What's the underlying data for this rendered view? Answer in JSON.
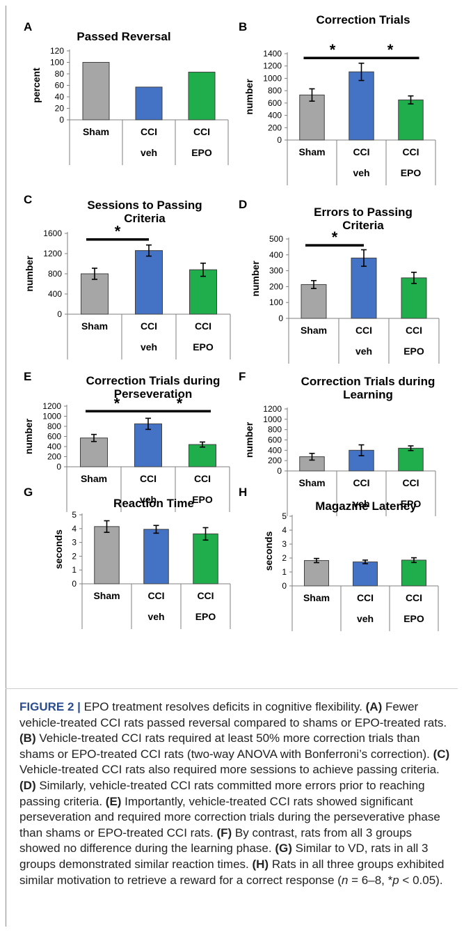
{
  "figure": {
    "label": "FIGURE 2 |",
    "caption_segments": [
      {
        "text": "EPO treatment resolves deficits in cognitive flexibility. ",
        "style": "normal"
      },
      {
        "text": "(A)",
        "style": "bold"
      },
      {
        "text": " Fewer vehicle-treated CCI rats passed reversal compared to shams or EPO-treated rats. ",
        "style": "normal"
      },
      {
        "text": "(B)",
        "style": "bold"
      },
      {
        "text": " Vehicle-treated CCI rats required at least 50% more correction trials than shams or EPO-treated CCI rats (two-way ANOVA with Bonferroni’s correction). ",
        "style": "normal"
      },
      {
        "text": "(C)",
        "style": "bold"
      },
      {
        "text": " Vehicle-treated CCI rats also required more sessions to achieve passing criteria. ",
        "style": "normal"
      },
      {
        "text": "(D)",
        "style": "bold"
      },
      {
        "text": " Similarly, vehicle-treated CCI rats committed more errors prior to reaching passing criteria. ",
        "style": "normal"
      },
      {
        "text": "(E)",
        "style": "bold"
      },
      {
        "text": " Importantly, vehicle-treated CCI rats showed significant perseveration and required more correction trials during the perseverative phase than shams or EPO-treated CCI rats. ",
        "style": "normal"
      },
      {
        "text": "(F)",
        "style": "bold"
      },
      {
        "text": " By contrast, rats from all 3 groups showed no difference during the learning phase. ",
        "style": "normal"
      },
      {
        "text": "(G)",
        "style": "bold"
      },
      {
        "text": " Similar to VD, rats in all 3 groups demonstrated similar reaction times. ",
        "style": "normal"
      },
      {
        "text": "(H)",
        "style": "bold"
      },
      {
        "text": " Rats in all three groups exhibited similar motivation to retrieve a reward for a correct response (",
        "style": "normal"
      },
      {
        "text": "n",
        "style": "italic"
      },
      {
        "text": " = 6–8, *",
        "style": "normal"
      },
      {
        "text": "p",
        "style": "italic"
      },
      {
        "text": " < 0.05).",
        "style": "normal"
      }
    ]
  },
  "colors": {
    "sham": "#a6a6a6",
    "veh": "#4472c4",
    "epo": "#1fae4b"
  },
  "chart_data": [
    {
      "panel": "A",
      "type": "bar",
      "title": [
        "Passed Reversal"
      ],
      "ylabel": "percent",
      "ylim": [
        0,
        120
      ],
      "yticks": [
        0,
        20,
        40,
        60,
        80,
        100,
        120
      ],
      "categories": [
        [
          "Sham"
        ],
        [
          "CCI",
          "veh"
        ],
        [
          "CCI",
          "EPO"
        ]
      ],
      "values": [
        100,
        57,
        83
      ],
      "errors": null,
      "significance": []
    },
    {
      "panel": "B",
      "type": "bar",
      "title": [
        "Correction Trials"
      ],
      "ylabel": "number",
      "ylim": [
        0,
        1400
      ],
      "yticks": [
        0,
        200,
        400,
        600,
        800,
        1000,
        1200,
        1400
      ],
      "categories": [
        [
          "Sham"
        ],
        [
          "CCI",
          "veh"
        ],
        [
          "CCI",
          "EPO"
        ]
      ],
      "values": [
        730,
        1105,
        650
      ],
      "errors": [
        100,
        140,
        65
      ],
      "significance": [
        {
          "from": 0,
          "to": 1,
          "label": "*",
          "y": 1330
        },
        {
          "from": 1,
          "to": 2,
          "label": "*",
          "y": 1330
        }
      ]
    },
    {
      "panel": "C",
      "type": "bar",
      "title": [
        "Sessions to Passing",
        "Criteria"
      ],
      "ylabel": "number",
      "ylim": [
        0,
        1600
      ],
      "yticks": [
        0,
        400,
        800,
        1200,
        1600
      ],
      "categories": [
        [
          "Sham"
        ],
        [
          "CCI",
          "veh"
        ],
        [
          "CCI",
          "EPO"
        ]
      ],
      "values": [
        800,
        1260,
        880
      ],
      "errors": [
        110,
        110,
        130
      ],
      "significance": [
        {
          "from": 0,
          "to": 1,
          "label": "*",
          "y": 1480
        }
      ]
    },
    {
      "panel": "D",
      "type": "bar",
      "title": [
        "Errors to Passing",
        "Criteria"
      ],
      "ylabel": "number",
      "ylim": [
        0,
        500
      ],
      "yticks": [
        0,
        100,
        200,
        300,
        400,
        500
      ],
      "categories": [
        [
          "Sham"
        ],
        [
          "CCI",
          "veh"
        ],
        [
          "CCI",
          "EPO"
        ]
      ],
      "values": [
        213,
        380,
        255
      ],
      "errors": [
        25,
        52,
        35
      ],
      "significance": [
        {
          "from": 0,
          "to": 1,
          "label": "*",
          "y": 460
        }
      ]
    },
    {
      "panel": "E",
      "type": "bar",
      "title": [
        "Correction Trials during",
        "Perseveration"
      ],
      "ylabel": "number",
      "ylim": [
        0,
        1200
      ],
      "yticks": [
        0,
        200,
        400,
        600,
        800,
        1000,
        1200
      ],
      "categories": [
        [
          "Sham"
        ],
        [
          "CCI",
          "veh"
        ],
        [
          "CCI",
          "EPO"
        ]
      ],
      "values": [
        570,
        850,
        440
      ],
      "errors": [
        70,
        110,
        50
      ],
      "significance": [
        {
          "from": 0,
          "to": 1,
          "label": "*",
          "y": 1100
        },
        {
          "from": 1,
          "to": 2,
          "label": "*",
          "y": 1100
        }
      ]
    },
    {
      "panel": "F",
      "type": "bar",
      "title": [
        "Correction Trials during",
        "Learning"
      ],
      "ylabel": "number",
      "ylim": [
        0,
        1200
      ],
      "yticks": [
        0,
        200,
        400,
        600,
        800,
        1000,
        1200
      ],
      "categories": [
        [
          "Sham"
        ],
        [
          "CCI",
          "veh"
        ],
        [
          "CCI",
          "EPO"
        ]
      ],
      "values": [
        275,
        400,
        440
      ],
      "errors": [
        65,
        105,
        45
      ],
      "significance": []
    },
    {
      "panel": "G",
      "type": "bar",
      "title": [
        "Reaction Time"
      ],
      "ylabel": "seconds",
      "ylim": [
        0,
        5
      ],
      "yticks": [
        0,
        1,
        2,
        3,
        4,
        5
      ],
      "categories": [
        [
          "Sham"
        ],
        [
          "CCI",
          "veh"
        ],
        [
          "CCI",
          "EPO"
        ]
      ],
      "values": [
        4.15,
        3.95,
        3.62
      ],
      "errors": [
        0.42,
        0.28,
        0.45
      ],
      "significance": []
    },
    {
      "panel": "H",
      "type": "bar",
      "title": [
        "Magazine Latency"
      ],
      "ylabel": "seconds",
      "ylim": [
        0,
        5
      ],
      "yticks": [
        0,
        1,
        2,
        3,
        4,
        5
      ],
      "categories": [
        [
          "Sham"
        ],
        [
          "CCI",
          "veh"
        ],
        [
          "CCI",
          "EPO"
        ]
      ],
      "values": [
        1.82,
        1.72,
        1.85
      ],
      "errors": [
        0.15,
        0.13,
        0.17
      ],
      "significance": []
    }
  ]
}
